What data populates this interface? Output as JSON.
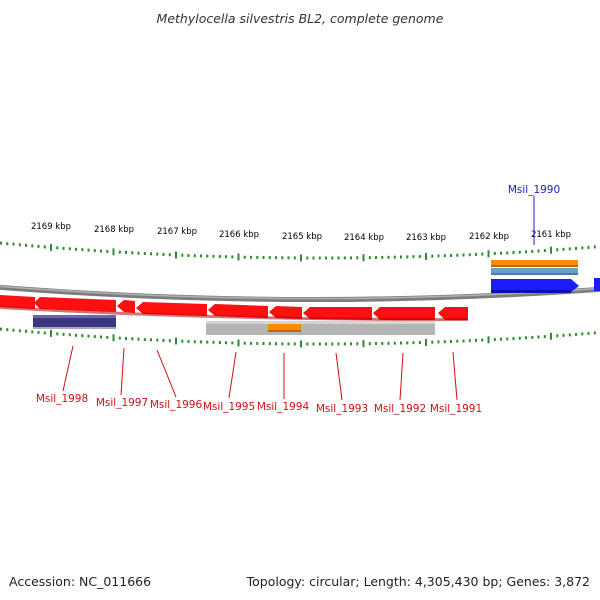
{
  "title": "Methylocella silvestris BL2, complete genome",
  "footer": {
    "accession": "Accession: NC_011666",
    "summary": "Topology: circular; Length: 4,305,430 bp; Genes: 3,872"
  },
  "colors": {
    "backbone": "#8a8a8a",
    "tick": "#2e8b2e",
    "cds_forward": "#1b1bff",
    "cds_reverse": "#ff1010",
    "gene_feature": "#ff8c00",
    "mrna_feature": "#6f9fc8",
    "misc_feature": "#3b3680",
    "grey_feature": "#b4b4b4",
    "label_forward": "#2020c0",
    "label_reverse": "#d01010"
  },
  "scale_labels": [
    "2169 kbp",
    "2168 kbp",
    "2167 kbp",
    "2166 kbp",
    "2165 kbp",
    "2164 kbp",
    "2163 kbp",
    "2162 kbp",
    "2161 kbp"
  ],
  "gene_labels_forward": [
    "Msil_1990"
  ],
  "gene_labels_reverse": [
    "Msil_1998",
    "Msil_1997",
    "Msil_1996",
    "Msil_1995",
    "Msil_1994",
    "Msil_1993",
    "Msil_1992",
    "Msil_1991"
  ]
}
